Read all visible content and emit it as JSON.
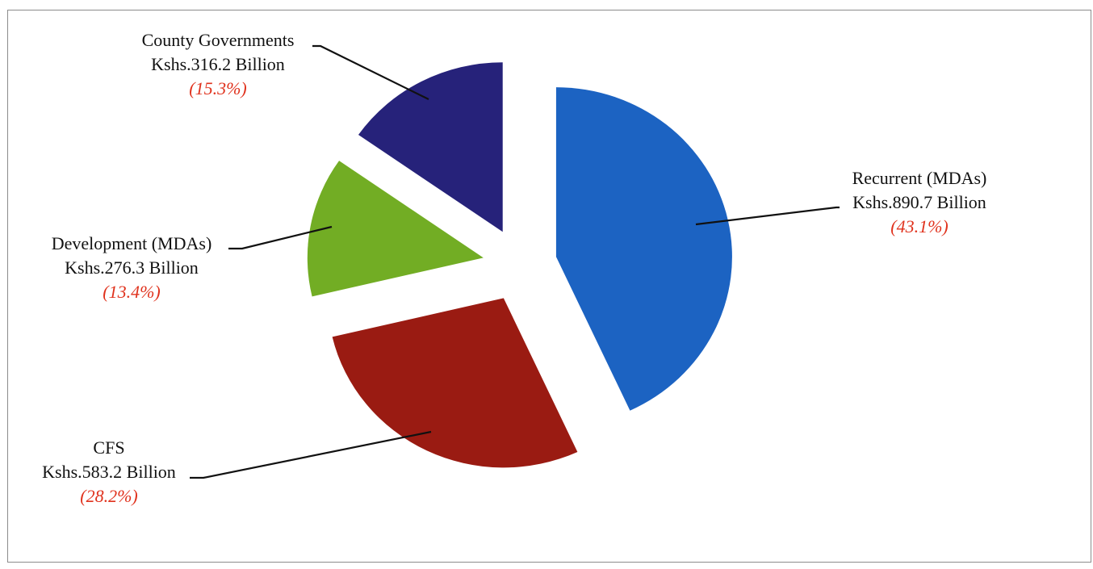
{
  "chart_data": {
    "type": "pie",
    "title": "",
    "exploded": true,
    "slices": [
      {
        "label": "Recurrent (MDAs)",
        "amount": "Kshs.890.7 Billion",
        "value": 890.7,
        "percent": 43.1,
        "percent_text": "(43.1%)",
        "color": "#1c63c2"
      },
      {
        "label": "CFS",
        "amount": "Kshs.583.2 Billion",
        "value": 583.2,
        "percent": 28.2,
        "percent_text": "(28.2%)",
        "color": "#9a1b12"
      },
      {
        "label": "Development (MDAs)",
        "amount": "Kshs.276.3 Billion",
        "value": 276.3,
        "percent": 13.4,
        "percent_text": "(13.4%)",
        "color": "#72ad24"
      },
      {
        "label": "County Governments",
        "amount": "Kshs.316.2 Billion",
        "value": 316.2,
        "percent": 15.3,
        "percent_text": "(15.3%)",
        "color": "#26227a"
      }
    ],
    "percent_text_color": "#e0321d",
    "legend": "none"
  }
}
